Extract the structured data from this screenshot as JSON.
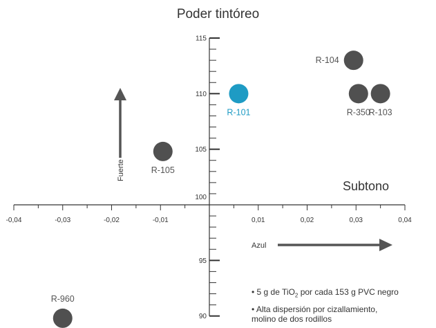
{
  "chart_data": {
    "type": "scatter",
    "title": "Poder tintóreo",
    "xlabel": "Subtono",
    "ylabel": "",
    "xlim": [
      -0.04,
      0.04
    ],
    "ylim": [
      90,
      115
    ],
    "x_ticks": [
      "-0,04",
      "-0,03",
      "-0,02",
      "-0,01",
      "0,01",
      "0,02",
      "0,03",
      "0,04"
    ],
    "y_ticks": [
      "90",
      "95",
      "100",
      "105",
      "110",
      "115"
    ],
    "points": [
      {
        "label": "R-101",
        "x": 0.006,
        "y": 110,
        "color": "#1e9bc4",
        "label_pos": "below"
      },
      {
        "label": "R-104",
        "x": 0.0295,
        "y": 113,
        "color": "#505050",
        "label_pos": "left"
      },
      {
        "label": "R-350",
        "x": 0.0305,
        "y": 110,
        "color": "#505050",
        "label_pos": "below"
      },
      {
        "label": "R-103",
        "x": 0.035,
        "y": 110,
        "color": "#505050",
        "label_pos": "below"
      },
      {
        "label": "R-105",
        "x": -0.0095,
        "y": 104.8,
        "color": "#505050",
        "label_pos": "below"
      },
      {
        "label": "R-960",
        "x": -0.03,
        "y": 89.8,
        "color": "#505050",
        "label_pos": "above"
      }
    ],
    "annotations": {
      "fuerte_label": "Fuerte",
      "azul_label": "Azul"
    },
    "notes": {
      "note1_prefix": "• 5 g de TiO",
      "note1_sub": "2",
      "note1_suffix": " por cada 153 g PVC negro",
      "note2_line1": "• Alta dispersión por cizallamiento,",
      "note2_line2": "molino de dos rodillos"
    }
  }
}
